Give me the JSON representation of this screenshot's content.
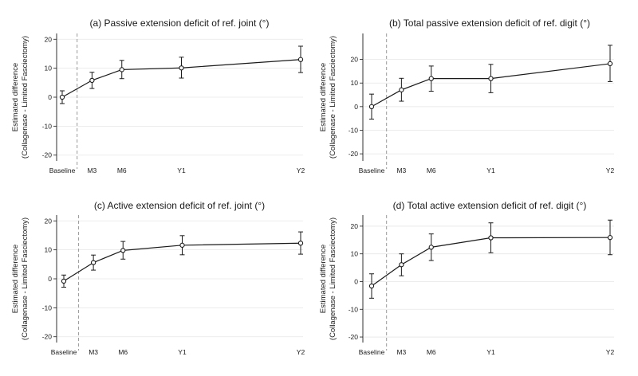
{
  "figure": {
    "background": "#ffffff",
    "line_color": "#1a1a1a",
    "grid_color": "#e6e6e6",
    "ref_line_color": "#9a9a9a"
  },
  "chart_data": [
    {
      "id": "a",
      "type": "line",
      "title": "(a) Passive extension deficit of ref. joint (°)",
      "ylabel_line1": "Estimated difference",
      "ylabel_line2": "(Collagenase - Limited Fasciectomy)",
      "x_labels": [
        "Baseline",
        "M3",
        "M6",
        "Y1",
        "Y2"
      ],
      "x_months": [
        0,
        3,
        6,
        12,
        24
      ],
      "reference_month": 1.5,
      "ylim": [
        -22,
        22
      ],
      "yticks": [
        -20,
        -10,
        0,
        10,
        20
      ],
      "values": [
        0,
        5.8,
        9.5,
        10.1,
        13
      ],
      "ci_lower": [
        -2.2,
        3.0,
        6.4,
        6.6,
        8.5
      ],
      "ci_upper": [
        2.2,
        8.6,
        12.7,
        13.8,
        17.6
      ]
    },
    {
      "id": "b",
      "type": "line",
      "title": "(b) Total passive extension deficit of ref. digit (°)",
      "ylabel_line1": "Estimated difference",
      "ylabel_line2": "(Collagenase - Limited Fasciectomy)",
      "x_labels": [
        "Baseline",
        "M3",
        "M6",
        "Y1",
        "Y2"
      ],
      "x_months": [
        0,
        3,
        6,
        12,
        24
      ],
      "reference_month": 1.5,
      "ylim": [
        -23,
        31
      ],
      "yticks": [
        -20,
        -10,
        0,
        10,
        20
      ],
      "values": [
        0,
        7.1,
        11.9,
        11.9,
        18.2
      ],
      "ci_lower": [
        -5.3,
        2.3,
        6.5,
        5.9,
        10.6
      ],
      "ci_upper": [
        5.3,
        12.0,
        17.2,
        17.9,
        26.0
      ]
    },
    {
      "id": "c",
      "type": "line",
      "title": "(c) Active extension deficit of ref. joint (°)",
      "ylabel_line1": "Estimated difference",
      "ylabel_line2": "(Collagenase - Limited Fasciectomy)",
      "x_labels": [
        "Baseline",
        "M3",
        "M6",
        "Y1",
        "Y2"
      ],
      "x_months": [
        0,
        3,
        6,
        12,
        24
      ],
      "reference_month": 1.5,
      "ylim": [
        -22,
        22
      ],
      "yticks": [
        -20,
        -10,
        0,
        10,
        20
      ],
      "values": [
        -0.8,
        5.6,
        9.8,
        11.6,
        12.3
      ],
      "ci_lower": [
        -2.9,
        3.0,
        6.8,
        8.3,
        8.5
      ],
      "ci_upper": [
        1.3,
        8.2,
        12.9,
        14.9,
        16.2
      ]
    },
    {
      "id": "d",
      "type": "line",
      "title": "(d) Total active extension deficit of ref. digit (°)",
      "ylabel_line1": "Estimated difference",
      "ylabel_line2": "(Collagenase - Limited Fasciectomy)",
      "x_labels": [
        "Baseline",
        "M3",
        "M6",
        "Y1",
        "Y2"
      ],
      "x_months": [
        0,
        3,
        6,
        12,
        24
      ],
      "reference_month": 1.5,
      "ylim": [
        -22,
        24
      ],
      "yticks": [
        -20,
        -10,
        0,
        10,
        20
      ],
      "values": [
        -1.6,
        6.1,
        12.4,
        15.8,
        15.9
      ],
      "ci_lower": [
        -6.0,
        2.1,
        7.6,
        10.4,
        9.7
      ],
      "ci_upper": [
        2.8,
        10.0,
        17.2,
        21.2,
        22.2
      ]
    }
  ]
}
